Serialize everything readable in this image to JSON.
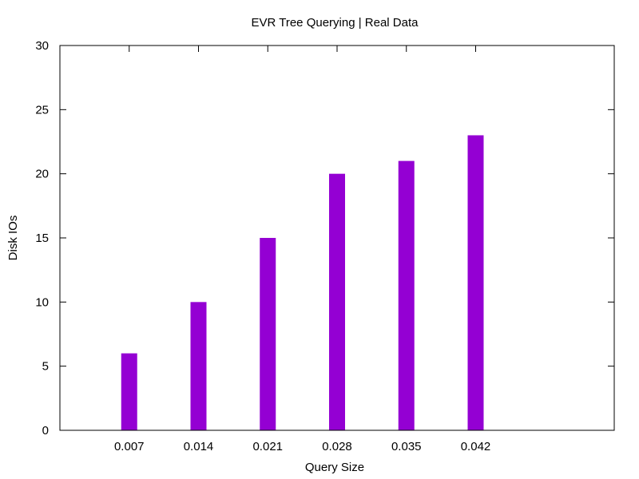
{
  "chart_data": {
    "type": "bar",
    "title": "EVR Tree Querying | Real Data",
    "xlabel": "Query Size",
    "ylabel": "Disk IOs",
    "categories": [
      "0.007",
      "0.014",
      "0.021",
      "0.028",
      "0.035",
      "0.042"
    ],
    "values": [
      6,
      10,
      15,
      20,
      21,
      23
    ],
    "ylim": [
      0,
      30
    ],
    "yticks": [
      "0",
      "5",
      "10",
      "15",
      "20",
      "25",
      "30"
    ],
    "bar_color": "#9400d3",
    "grid": false,
    "legend": "none"
  }
}
